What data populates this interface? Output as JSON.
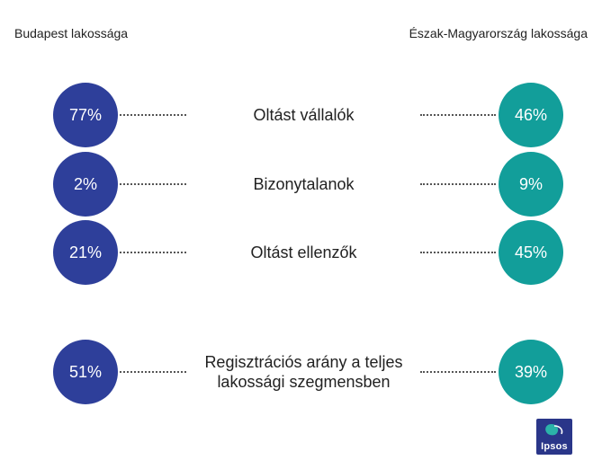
{
  "header": {
    "left_title": "Budapest lakossága",
    "right_title": "Észak-Magyarország lakossága"
  },
  "colors": {
    "left_series": "#2e3f9a",
    "right_series": "#129e9a",
    "logo_bg": "#2a3689"
  },
  "chart_data": {
    "type": "table",
    "series": [
      {
        "name": "Budapest lakossága",
        "values": [
          77,
          2,
          21,
          51
        ]
      },
      {
        "name": "Észak-Magyarország lakossága",
        "values": [
          46,
          9,
          45,
          39
        ]
      }
    ],
    "categories": [
      "Oltást vállalók",
      "Bizonytalanok",
      "Oltást ellenzők",
      "Regisztrációs arány a teljes lakossági szegmensben"
    ],
    "unit": "%"
  },
  "rows": [
    {
      "left": "77%",
      "label": "Oltást vállalók",
      "right": "46%"
    },
    {
      "left": "2%",
      "label": "Bizonytalanok",
      "right": "9%"
    },
    {
      "left": "21%",
      "label": "Oltást ellenzők",
      "right": "45%"
    },
    {
      "left": "51%",
      "label": "Regisztrációs arány a teljes lakossági szegmensben",
      "right": "39%"
    }
  ],
  "logo": {
    "text": "Ipsos",
    "icon": "ipsos-logo"
  }
}
